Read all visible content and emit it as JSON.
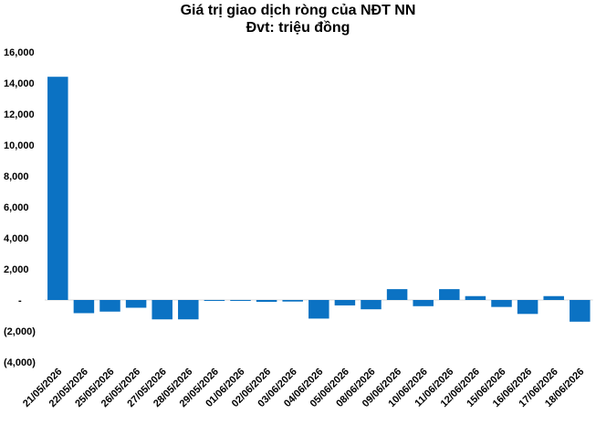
{
  "chart_data": {
    "type": "bar",
    "title": "Giá trị giao dịch ròng của NĐT NN",
    "subtitle": "Đvt: triệu đồng",
    "xlabel": "",
    "ylabel": "",
    "ylim": [
      -4000,
      16000
    ],
    "yticks": [
      {
        "value": 16000,
        "label": "16,000"
      },
      {
        "value": 14000,
        "label": "14,000"
      },
      {
        "value": 12000,
        "label": "12,000"
      },
      {
        "value": 10000,
        "label": "10,000"
      },
      {
        "value": 8000,
        "label": "8,000"
      },
      {
        "value": 6000,
        "label": "6,000"
      },
      {
        "value": 4000,
        "label": "4,000"
      },
      {
        "value": 2000,
        "label": "2,000"
      },
      {
        "value": 0,
        "label": "-"
      },
      {
        "value": -2000,
        "label": "(2,000)"
      },
      {
        "value": -4000,
        "label": "(4,000)"
      }
    ],
    "categories": [
      "21/05/2026",
      "22/05/2026",
      "25/05/2026",
      "26/05/2026",
      "27/05/2026",
      "28/05/2026",
      "29/05/2026",
      "01/06/2026",
      "02/06/2026",
      "03/06/2026",
      "04/06/2026",
      "05/06/2026",
      "08/06/2026",
      "09/06/2026",
      "10/06/2026",
      "11/06/2026",
      "12/06/2026",
      "15/06/2026",
      "16/06/2026",
      "17/06/2026",
      "18/06/2026"
    ],
    "values": [
      14400,
      -850,
      -750,
      -500,
      -1250,
      -1250,
      -40,
      -40,
      -120,
      -100,
      -1200,
      -350,
      -600,
      700,
      -400,
      700,
      250,
      -450,
      -900,
      250,
      -1400
    ],
    "bar_color": "#0b72c3",
    "grid": false,
    "legend": "none"
  }
}
